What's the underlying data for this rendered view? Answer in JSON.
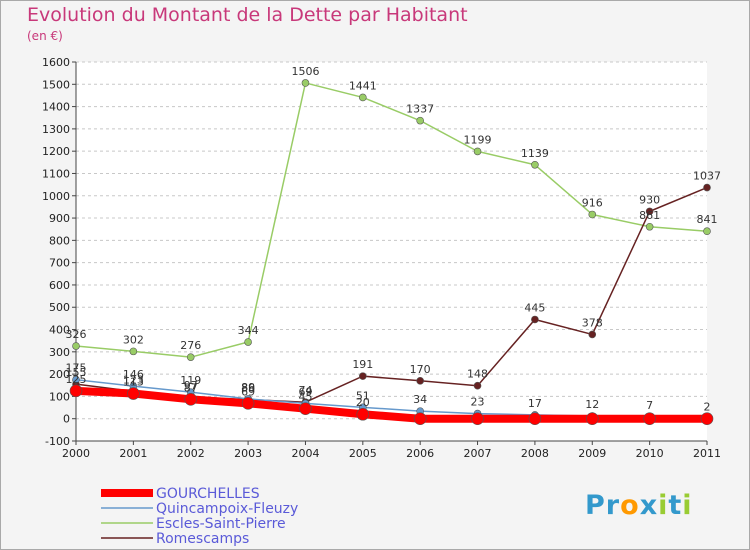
{
  "chart_data": {
    "type": "line",
    "title": "Evolution du Montant de la Dette par Habitant",
    "subtitle": "(en €)",
    "x": [
      "2000",
      "2001",
      "2002",
      "2003",
      "2004",
      "2005",
      "2006",
      "2007",
      "2008",
      "2009",
      "2010",
      "2011"
    ],
    "ylim": [
      -100,
      1600
    ],
    "yticks": [
      -100,
      0,
      100,
      200,
      300,
      400,
      500,
      600,
      700,
      800,
      900,
      1000,
      1100,
      1200,
      1300,
      1400,
      1500,
      1600
    ],
    "grid": "horizontal-dashed",
    "legend_position": "bottom-left",
    "series": [
      {
        "name": "GOURCHELLES",
        "color": "#ff0000",
        "values": [
          125,
          113,
          87,
          69,
          45,
          20,
          0,
          0,
          0,
          0,
          0,
          0
        ]
      },
      {
        "name": "Quincampoix-Fleuzy",
        "color": "#6699cc",
        "values": [
          175,
          146,
          119,
          89,
          69,
          51,
          34,
          23,
          17,
          12,
          7,
          2
        ]
      },
      {
        "name": "Escles-Saint-Pierre",
        "color": "#99cc66",
        "values": [
          326,
          302,
          276,
          344,
          1506,
          1441,
          1337,
          1199,
          1139,
          916,
          861,
          841
        ]
      },
      {
        "name": "Romescamps",
        "color": "#662222",
        "values": [
          155,
          123,
          97,
          86,
          74,
          191,
          170,
          148,
          445,
          378,
          930,
          1037
        ]
      }
    ],
    "data_labels": [
      {
        "series": 0,
        "values": [
          "125",
          "113",
          "87",
          "69",
          "45",
          "20",
          "",
          "",
          "",
          "",
          "",
          ""
        ]
      },
      {
        "series": 1,
        "values": [
          "175",
          "146",
          "119",
          "89",
          "69",
          "51",
          "34",
          "23",
          "17",
          "12",
          "7",
          "2"
        ]
      },
      {
        "series": 2,
        "values": [
          "326",
          "302",
          "276",
          "344",
          "1506",
          "1441",
          "1337",
          "1199",
          "1139",
          "916",
          "861",
          "841"
        ]
      },
      {
        "series": 3,
        "values": [
          "155",
          "123",
          "97",
          "86",
          "74",
          "191",
          "170",
          "148",
          "445",
          "378",
          "930",
          "1037"
        ]
      }
    ]
  },
  "logo": {
    "text": "Proxiti",
    "letters": [
      "P",
      "r",
      "o",
      "x",
      "i",
      "t",
      "i"
    ],
    "colors": [
      "#3399cc",
      "#3399cc",
      "#ff9900",
      "#3399cc",
      "#99cc33",
      "#3399cc",
      "#99cc33"
    ]
  }
}
